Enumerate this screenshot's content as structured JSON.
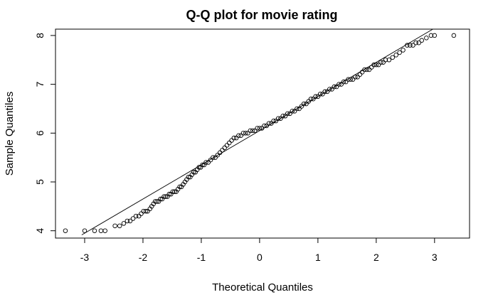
{
  "chart_data": {
    "type": "scatter",
    "title": "Q-Q plot for movie rating",
    "xlabel": "Theoretical Quantiles",
    "ylabel": "Sample Quantiles",
    "xlim": [
      -3.5,
      3.6
    ],
    "ylim": [
      3.85,
      8.13
    ],
    "x_ticks": [
      -3,
      -2,
      -1,
      0,
      1,
      2,
      3
    ],
    "y_ticks": [
      4,
      5,
      6,
      7,
      8
    ],
    "x_tick_labels": [
      "-3",
      "-2",
      "-1",
      "0",
      "1",
      "2",
      "3"
    ],
    "y_tick_labels": [
      "4",
      "5",
      "6",
      "7",
      "8"
    ],
    "grid": false,
    "reference_line": {
      "intercept": 6.05,
      "slope": 0.7
    },
    "points": [
      [
        -3.33,
        4.0
      ],
      [
        -3.0,
        4.0
      ],
      [
        -2.83,
        4.0
      ],
      [
        -2.72,
        4.0
      ],
      [
        -2.65,
        4.0
      ],
      [
        -2.48,
        4.1
      ],
      [
        -2.4,
        4.1
      ],
      [
        -2.33,
        4.15
      ],
      [
        -2.27,
        4.2
      ],
      [
        -2.22,
        4.2
      ],
      [
        -2.17,
        4.25
      ],
      [
        -2.12,
        4.3
      ],
      [
        -2.07,
        4.3
      ],
      [
        -2.03,
        4.35
      ],
      [
        -1.99,
        4.4
      ],
      [
        -1.95,
        4.4
      ],
      [
        -1.92,
        4.4
      ],
      [
        -1.88,
        4.45
      ],
      [
        -1.85,
        4.5
      ],
      [
        -1.82,
        4.55
      ],
      [
        -1.79,
        4.6
      ],
      [
        -1.76,
        4.6
      ],
      [
        -1.73,
        4.6
      ],
      [
        -1.7,
        4.65
      ],
      [
        -1.67,
        4.65
      ],
      [
        -1.64,
        4.7
      ],
      [
        -1.61,
        4.7
      ],
      [
        -1.58,
        4.7
      ],
      [
        -1.55,
        4.75
      ],
      [
        -1.52,
        4.75
      ],
      [
        -1.49,
        4.8
      ],
      [
        -1.46,
        4.8
      ],
      [
        -1.43,
        4.8
      ],
      [
        -1.4,
        4.85
      ],
      [
        -1.37,
        4.9
      ],
      [
        -1.34,
        4.9
      ],
      [
        -1.31,
        4.95
      ],
      [
        -1.28,
        5.0
      ],
      [
        -1.25,
        5.05
      ],
      [
        -1.22,
        5.1
      ],
      [
        -1.19,
        5.1
      ],
      [
        -1.16,
        5.15
      ],
      [
        -1.13,
        5.2
      ],
      [
        -1.1,
        5.2
      ],
      [
        -1.07,
        5.25
      ],
      [
        -1.04,
        5.3
      ],
      [
        -1.01,
        5.3
      ],
      [
        -0.98,
        5.35
      ],
      [
        -0.95,
        5.35
      ],
      [
        -0.92,
        5.4
      ],
      [
        -0.88,
        5.4
      ],
      [
        -0.84,
        5.45
      ],
      [
        -0.8,
        5.5
      ],
      [
        -0.76,
        5.5
      ],
      [
        -0.72,
        5.55
      ],
      [
        -0.68,
        5.6
      ],
      [
        -0.64,
        5.65
      ],
      [
        -0.6,
        5.7
      ],
      [
        -0.56,
        5.75
      ],
      [
        -0.52,
        5.8
      ],
      [
        -0.48,
        5.85
      ],
      [
        -0.44,
        5.9
      ],
      [
        -0.4,
        5.9
      ],
      [
        -0.36,
        5.95
      ],
      [
        -0.32,
        5.95
      ],
      [
        -0.28,
        6.0
      ],
      [
        -0.24,
        6.0
      ],
      [
        -0.2,
        6.0
      ],
      [
        -0.16,
        6.05
      ],
      [
        -0.12,
        6.05
      ],
      [
        -0.08,
        6.05
      ],
      [
        -0.04,
        6.1
      ],
      [
        0.0,
        6.1
      ],
      [
        0.04,
        6.1
      ],
      [
        0.08,
        6.15
      ],
      [
        0.12,
        6.15
      ],
      [
        0.16,
        6.2
      ],
      [
        0.2,
        6.2
      ],
      [
        0.24,
        6.25
      ],
      [
        0.28,
        6.25
      ],
      [
        0.32,
        6.3
      ],
      [
        0.36,
        6.3
      ],
      [
        0.4,
        6.35
      ],
      [
        0.44,
        6.35
      ],
      [
        0.48,
        6.4
      ],
      [
        0.52,
        6.4
      ],
      [
        0.56,
        6.45
      ],
      [
        0.6,
        6.45
      ],
      [
        0.64,
        6.5
      ],
      [
        0.68,
        6.5
      ],
      [
        0.72,
        6.55
      ],
      [
        0.76,
        6.6
      ],
      [
        0.8,
        6.6
      ],
      [
        0.84,
        6.65
      ],
      [
        0.88,
        6.7
      ],
      [
        0.92,
        6.7
      ],
      [
        0.96,
        6.75
      ],
      [
        1.0,
        6.75
      ],
      [
        1.04,
        6.8
      ],
      [
        1.08,
        6.8
      ],
      [
        1.12,
        6.85
      ],
      [
        1.16,
        6.85
      ],
      [
        1.2,
        6.9
      ],
      [
        1.24,
        6.9
      ],
      [
        1.28,
        6.95
      ],
      [
        1.32,
        6.95
      ],
      [
        1.36,
        7.0
      ],
      [
        1.4,
        7.0
      ],
      [
        1.44,
        7.05
      ],
      [
        1.48,
        7.05
      ],
      [
        1.52,
        7.1
      ],
      [
        1.56,
        7.1
      ],
      [
        1.6,
        7.1
      ],
      [
        1.64,
        7.15
      ],
      [
        1.68,
        7.15
      ],
      [
        1.72,
        7.2
      ],
      [
        1.76,
        7.25
      ],
      [
        1.8,
        7.3
      ],
      [
        1.84,
        7.3
      ],
      [
        1.88,
        7.3
      ],
      [
        1.92,
        7.35
      ],
      [
        1.96,
        7.4
      ],
      [
        2.0,
        7.4
      ],
      [
        2.04,
        7.4
      ],
      [
        2.08,
        7.45
      ],
      [
        2.12,
        7.45
      ],
      [
        2.16,
        7.5
      ],
      [
        2.22,
        7.5
      ],
      [
        2.28,
        7.55
      ],
      [
        2.34,
        7.6
      ],
      [
        2.4,
        7.65
      ],
      [
        2.46,
        7.7
      ],
      [
        2.53,
        7.8
      ],
      [
        2.58,
        7.8
      ],
      [
        2.63,
        7.8
      ],
      [
        2.68,
        7.85
      ],
      [
        2.73,
        7.85
      ],
      [
        2.78,
        7.9
      ],
      [
        2.86,
        7.95
      ],
      [
        2.94,
        8.0
      ],
      [
        3.0,
        8.0
      ],
      [
        3.33,
        8.0
      ]
    ]
  }
}
